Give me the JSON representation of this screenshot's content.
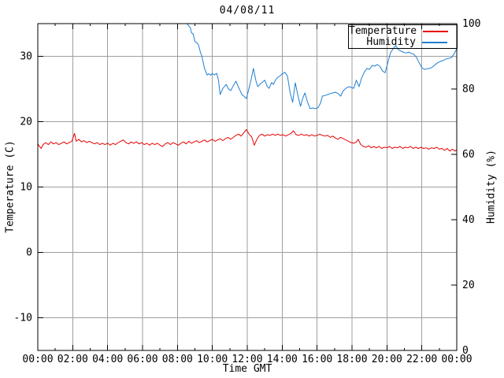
{
  "chart_data": {
    "type": "line",
    "title": "04/08/11",
    "xlabel": "Time GMT",
    "ylabel_left": "Temperature (C)",
    "ylabel_right": "Humidity (%)",
    "xlim_hours": [
      0,
      24
    ],
    "ylim_left": [
      -15,
      35
    ],
    "ylim_right": [
      0,
      100
    ],
    "grid": {
      "on": true,
      "color": "#9e9e9e",
      "vertical_at_hours": [
        2,
        4,
        6,
        8,
        10,
        12,
        14,
        16,
        18,
        20,
        22
      ],
      "horizontal_at_left_values": [
        30,
        20,
        10,
        0,
        -10
      ]
    },
    "x_ticks": [
      {
        "hour": 0,
        "label": "00:00"
      },
      {
        "hour": 2,
        "label": "02:00"
      },
      {
        "hour": 4,
        "label": "04:00"
      },
      {
        "hour": 6,
        "label": "06:00"
      },
      {
        "hour": 8,
        "label": "08:00"
      },
      {
        "hour": 10,
        "label": "10:00"
      },
      {
        "hour": 12,
        "label": "12:00"
      },
      {
        "hour": 14,
        "label": "14:00"
      },
      {
        "hour": 16,
        "label": "16:00"
      },
      {
        "hour": 18,
        "label": "18:00"
      },
      {
        "hour": 20,
        "label": "20:00"
      },
      {
        "hour": 22,
        "label": "22:00"
      },
      {
        "hour": 24,
        "label": "00:00"
      }
    ],
    "x_minor_hours": [
      1,
      3,
      5,
      7,
      9,
      11,
      13,
      15,
      17,
      19,
      21,
      23
    ],
    "y_left_ticks": [
      {
        "value": 30,
        "label": "30"
      },
      {
        "value": 20,
        "label": "20"
      },
      {
        "value": 10,
        "label": "10"
      },
      {
        "value": 0,
        "label": "0"
      },
      {
        "value": -10,
        "label": "-10"
      }
    ],
    "y_right_ticks": [
      {
        "value": 100,
        "label": "100"
      },
      {
        "value": 80,
        "label": "80"
      },
      {
        "value": 60,
        "label": "60"
      },
      {
        "value": 40,
        "label": "40"
      },
      {
        "value": 20,
        "label": "20"
      },
      {
        "value": 0,
        "label": "0"
      }
    ],
    "legend_position": "top-right-inside-box",
    "series": [
      {
        "name": "Temperature",
        "axis": "left",
        "unit": "C",
        "color": "#e60000",
        "points": [
          [
            0,
            16.6
          ],
          [
            0.1,
            16.2
          ],
          [
            0.2,
            15.9
          ],
          [
            0.3,
            16.5
          ],
          [
            0.45,
            16.8
          ],
          [
            0.6,
            16.5
          ],
          [
            0.75,
            16.9
          ],
          [
            0.9,
            16.6
          ],
          [
            1.05,
            16.8
          ],
          [
            1.2,
            16.5
          ],
          [
            1.35,
            16.7
          ],
          [
            1.5,
            16.9
          ],
          [
            1.65,
            16.6
          ],
          [
            1.8,
            16.8
          ],
          [
            1.95,
            17.0
          ],
          [
            2.1,
            18.2
          ],
          [
            2.2,
            17.0
          ],
          [
            2.35,
            17.3
          ],
          [
            2.5,
            16.9
          ],
          [
            2.65,
            17.1
          ],
          [
            2.8,
            16.8
          ],
          [
            2.95,
            17.0
          ],
          [
            3.1,
            16.8
          ],
          [
            3.25,
            16.6
          ],
          [
            3.4,
            16.8
          ],
          [
            3.55,
            16.5
          ],
          [
            3.7,
            16.7
          ],
          [
            3.85,
            16.5
          ],
          [
            4,
            16.7
          ],
          [
            4.15,
            16.4
          ],
          [
            4.3,
            16.7
          ],
          [
            4.45,
            16.5
          ],
          [
            4.6,
            16.8
          ],
          [
            4.75,
            17.0
          ],
          [
            4.9,
            17.2
          ],
          [
            5.05,
            16.8
          ],
          [
            5.2,
            16.6
          ],
          [
            5.35,
            16.9
          ],
          [
            5.5,
            16.7
          ],
          [
            5.65,
            16.9
          ],
          [
            5.8,
            16.6
          ],
          [
            5.95,
            16.8
          ],
          [
            6.1,
            16.5
          ],
          [
            6.25,
            16.7
          ],
          [
            6.4,
            16.4
          ],
          [
            6.55,
            16.7
          ],
          [
            6.7,
            16.5
          ],
          [
            6.85,
            16.7
          ],
          [
            7,
            16.4
          ],
          [
            7.15,
            16.2
          ],
          [
            7.3,
            16.6
          ],
          [
            7.45,
            16.8
          ],
          [
            7.6,
            16.5
          ],
          [
            7.75,
            16.8
          ],
          [
            7.9,
            16.6
          ],
          [
            8.05,
            16.4
          ],
          [
            8.2,
            16.7
          ],
          [
            8.35,
            16.9
          ],
          [
            8.5,
            16.6
          ],
          [
            8.65,
            17.0
          ],
          [
            8.8,
            16.7
          ],
          [
            8.95,
            16.9
          ],
          [
            9.1,
            17.1
          ],
          [
            9.25,
            16.8
          ],
          [
            9.4,
            17.0
          ],
          [
            9.55,
            17.2
          ],
          [
            9.7,
            16.9
          ],
          [
            9.85,
            17.1
          ],
          [
            10,
            17.3
          ],
          [
            10.15,
            17.0
          ],
          [
            10.3,
            17.2
          ],
          [
            10.45,
            17.4
          ],
          [
            10.6,
            17.1
          ],
          [
            10.75,
            17.4
          ],
          [
            10.9,
            17.6
          ],
          [
            11.05,
            17.3
          ],
          [
            11.2,
            17.6
          ],
          [
            11.35,
            17.9
          ],
          [
            11.5,
            18.1
          ],
          [
            11.65,
            17.8
          ],
          [
            11.8,
            18.3
          ],
          [
            11.95,
            18.8
          ],
          [
            12.1,
            18.1
          ],
          [
            12.25,
            17.7
          ],
          [
            12.4,
            16.4
          ],
          [
            12.55,
            17.3
          ],
          [
            12.7,
            17.9
          ],
          [
            12.85,
            18.1
          ],
          [
            13,
            17.8
          ],
          [
            13.15,
            18.0
          ],
          [
            13.3,
            17.9
          ],
          [
            13.45,
            18.1
          ],
          [
            13.6,
            17.9
          ],
          [
            13.75,
            18.1
          ],
          [
            13.9,
            17.9
          ],
          [
            14.05,
            18.0
          ],
          [
            14.2,
            17.8
          ],
          [
            14.35,
            18.0
          ],
          [
            14.5,
            18.2
          ],
          [
            14.65,
            18.6
          ],
          [
            14.8,
            18.0
          ],
          [
            14.95,
            17.9
          ],
          [
            15.1,
            18.1
          ],
          [
            15.25,
            17.9
          ],
          [
            15.4,
            18.0
          ],
          [
            15.55,
            17.8
          ],
          [
            15.7,
            18.0
          ],
          [
            15.85,
            17.8
          ],
          [
            16,
            17.9
          ],
          [
            16.15,
            18.1
          ],
          [
            16.3,
            17.9
          ],
          [
            16.45,
            17.8
          ],
          [
            16.6,
            17.9
          ],
          [
            16.75,
            17.6
          ],
          [
            16.9,
            17.8
          ],
          [
            17.05,
            17.5
          ],
          [
            17.2,
            17.3
          ],
          [
            17.35,
            17.6
          ],
          [
            17.5,
            17.4
          ],
          [
            17.65,
            17.2
          ],
          [
            17.8,
            17.0
          ],
          [
            17.95,
            16.8
          ],
          [
            18.1,
            16.7
          ],
          [
            18.25,
            16.9
          ],
          [
            18.35,
            17.3
          ],
          [
            18.5,
            16.5
          ],
          [
            18.65,
            16.2
          ],
          [
            18.8,
            16.1
          ],
          [
            18.95,
            16.3
          ],
          [
            19.1,
            16.0
          ],
          [
            19.25,
            16.2
          ],
          [
            19.4,
            16.0
          ],
          [
            19.55,
            16.2
          ],
          [
            19.7,
            15.9
          ],
          [
            19.85,
            16.1
          ],
          [
            20,
            16.0
          ],
          [
            20.15,
            16.2
          ],
          [
            20.3,
            15.9
          ],
          [
            20.45,
            16.1
          ],
          [
            20.6,
            16.0
          ],
          [
            20.75,
            16.2
          ],
          [
            20.9,
            15.9
          ],
          [
            21.05,
            16.1
          ],
          [
            21.2,
            16.0
          ],
          [
            21.35,
            16.2
          ],
          [
            21.5,
            15.9
          ],
          [
            21.65,
            16.1
          ],
          [
            21.8,
            15.9
          ],
          [
            21.95,
            16.1
          ],
          [
            22.1,
            15.9
          ],
          [
            22.25,
            16.0
          ],
          [
            22.4,
            15.8
          ],
          [
            22.55,
            16.0
          ],
          [
            22.7,
            15.9
          ],
          [
            22.85,
            16.1
          ],
          [
            23,
            15.8
          ],
          [
            23.15,
            15.9
          ],
          [
            23.3,
            15.6
          ],
          [
            23.45,
            15.9
          ],
          [
            23.6,
            15.5
          ],
          [
            23.75,
            15.8
          ],
          [
            23.9,
            15.5
          ],
          [
            24,
            15.7
          ]
        ]
      },
      {
        "name": "Humidity",
        "axis": "right",
        "unit": "%",
        "color": "#1f7fd3",
        "points": [
          [
            8.55,
            100
          ],
          [
            8.65,
            99.3
          ],
          [
            8.75,
            98.6
          ],
          [
            8.8,
            97.2
          ],
          [
            8.9,
            96.8
          ],
          [
            9,
            94.5
          ],
          [
            9.1,
            94.2
          ],
          [
            9.2,
            93.6
          ],
          [
            9.3,
            91.5
          ],
          [
            9.4,
            89.9
          ],
          [
            9.55,
            86.3
          ],
          [
            9.7,
            84.3
          ],
          [
            9.8,
            84.7
          ],
          [
            9.9,
            84.2
          ],
          [
            10,
            84.8
          ],
          [
            10.1,
            84.3
          ],
          [
            10.25,
            84.8
          ],
          [
            10.35,
            82.7
          ],
          [
            10.45,
            78.3
          ],
          [
            10.6,
            80.2
          ],
          [
            10.8,
            81.4
          ],
          [
            10.9,
            80.2
          ],
          [
            11.05,
            79.5
          ],
          [
            11.2,
            81
          ],
          [
            11.35,
            82.4
          ],
          [
            11.5,
            80.5
          ],
          [
            11.7,
            78.3
          ],
          [
            11.85,
            77.6
          ],
          [
            11.95,
            77.1
          ],
          [
            12.1,
            80.2
          ],
          [
            12.25,
            83.6
          ],
          [
            12.35,
            86.3
          ],
          [
            12.5,
            82.4
          ],
          [
            12.6,
            80.7
          ],
          [
            12.75,
            81.6
          ],
          [
            12.9,
            82.2
          ],
          [
            13,
            82.7
          ],
          [
            13.15,
            80.7
          ],
          [
            13.25,
            80.2
          ],
          [
            13.4,
            82
          ],
          [
            13.5,
            81.4
          ],
          [
            13.6,
            82.6
          ],
          [
            13.75,
            83.6
          ],
          [
            13.9,
            84.1
          ],
          [
            14,
            84.6
          ],
          [
            14.15,
            85.1
          ],
          [
            14.3,
            84
          ],
          [
            14.45,
            79
          ],
          [
            14.6,
            75.9
          ],
          [
            14.75,
            81.9
          ],
          [
            14.9,
            78
          ],
          [
            15.05,
            74.7
          ],
          [
            15.2,
            77.5
          ],
          [
            15.3,
            78.8
          ],
          [
            15.45,
            76
          ],
          [
            15.6,
            74
          ],
          [
            15.75,
            74.2
          ],
          [
            15.9,
            74
          ],
          [
            16.05,
            74.3
          ],
          [
            16.2,
            75.7
          ],
          [
            16.3,
            77.8
          ],
          [
            16.45,
            78
          ],
          [
            16.6,
            78.3
          ],
          [
            16.75,
            78.6
          ],
          [
            16.9,
            78.8
          ],
          [
            17.05,
            79
          ],
          [
            17.2,
            78.6
          ],
          [
            17.35,
            77.8
          ],
          [
            17.5,
            79.5
          ],
          [
            17.65,
            80.2
          ],
          [
            17.8,
            80.7
          ],
          [
            17.95,
            80.5
          ],
          [
            18.1,
            80.2
          ],
          [
            18.25,
            82.7
          ],
          [
            18.4,
            80.7
          ],
          [
            18.55,
            83.4
          ],
          [
            18.7,
            85.1
          ],
          [
            18.85,
            86.3
          ],
          [
            19,
            86
          ],
          [
            19.15,
            87.2
          ],
          [
            19.3,
            87
          ],
          [
            19.45,
            87.5
          ],
          [
            19.6,
            86.9
          ],
          [
            19.75,
            85.5
          ],
          [
            19.9,
            85
          ],
          [
            20.05,
            88
          ],
          [
            20.2,
            91
          ],
          [
            20.35,
            92.3
          ],
          [
            20.5,
            93.3
          ],
          [
            20.65,
            92.1
          ],
          [
            20.8,
            91.6
          ],
          [
            20.95,
            91.2
          ],
          [
            21.1,
            91
          ],
          [
            21.25,
            91.3
          ],
          [
            21.4,
            90.9
          ],
          [
            21.55,
            90.6
          ],
          [
            21.7,
            89.6
          ],
          [
            21.85,
            88
          ],
          [
            22,
            86.5
          ],
          [
            22.15,
            86
          ],
          [
            22.3,
            86.2
          ],
          [
            22.45,
            86.3
          ],
          [
            22.6,
            86.7
          ],
          [
            22.75,
            87.4
          ],
          [
            22.9,
            88
          ],
          [
            23.05,
            88.4
          ],
          [
            23.2,
            88.7
          ],
          [
            23.4,
            89.2
          ],
          [
            23.55,
            89.4
          ],
          [
            23.7,
            89.6
          ],
          [
            23.85,
            90.8
          ],
          [
            24,
            92.3
          ]
        ]
      }
    ]
  }
}
